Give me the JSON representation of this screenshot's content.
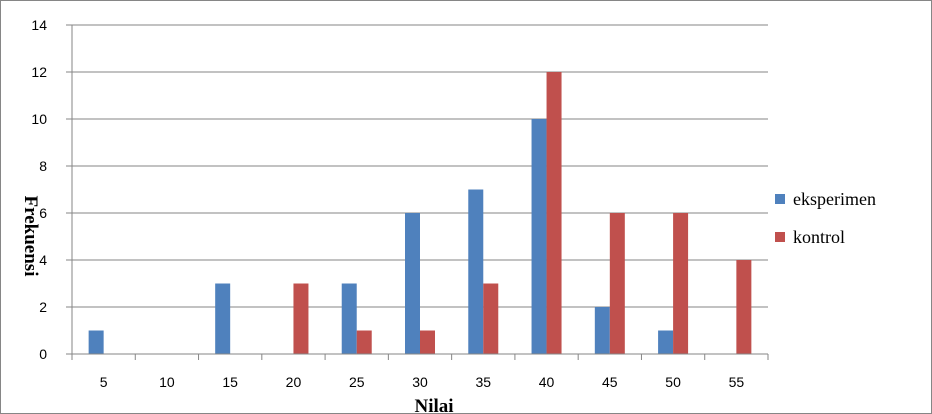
{
  "chart_data": {
    "type": "bar",
    "title": "",
    "xlabel": "Nilai",
    "ylabel": "Frekuensi",
    "categories": [
      "5",
      "10",
      "15",
      "20",
      "25",
      "30",
      "35",
      "40",
      "45",
      "50",
      "55"
    ],
    "ylim": [
      0,
      14
    ],
    "yticks": [
      "0",
      "2",
      "4",
      "6",
      "8",
      "10",
      "12",
      "14"
    ],
    "grid": true,
    "legend_position": "right",
    "series": [
      {
        "name": "eksperimen",
        "color": "#4F81BD",
        "values": [
          1,
          0,
          3,
          0,
          3,
          6,
          7,
          10,
          2,
          1,
          0
        ]
      },
      {
        "name": "kontrol",
        "color": "#C0504D",
        "values": [
          0,
          0,
          0,
          3,
          1,
          1,
          3,
          12,
          6,
          6,
          4
        ]
      }
    ]
  }
}
